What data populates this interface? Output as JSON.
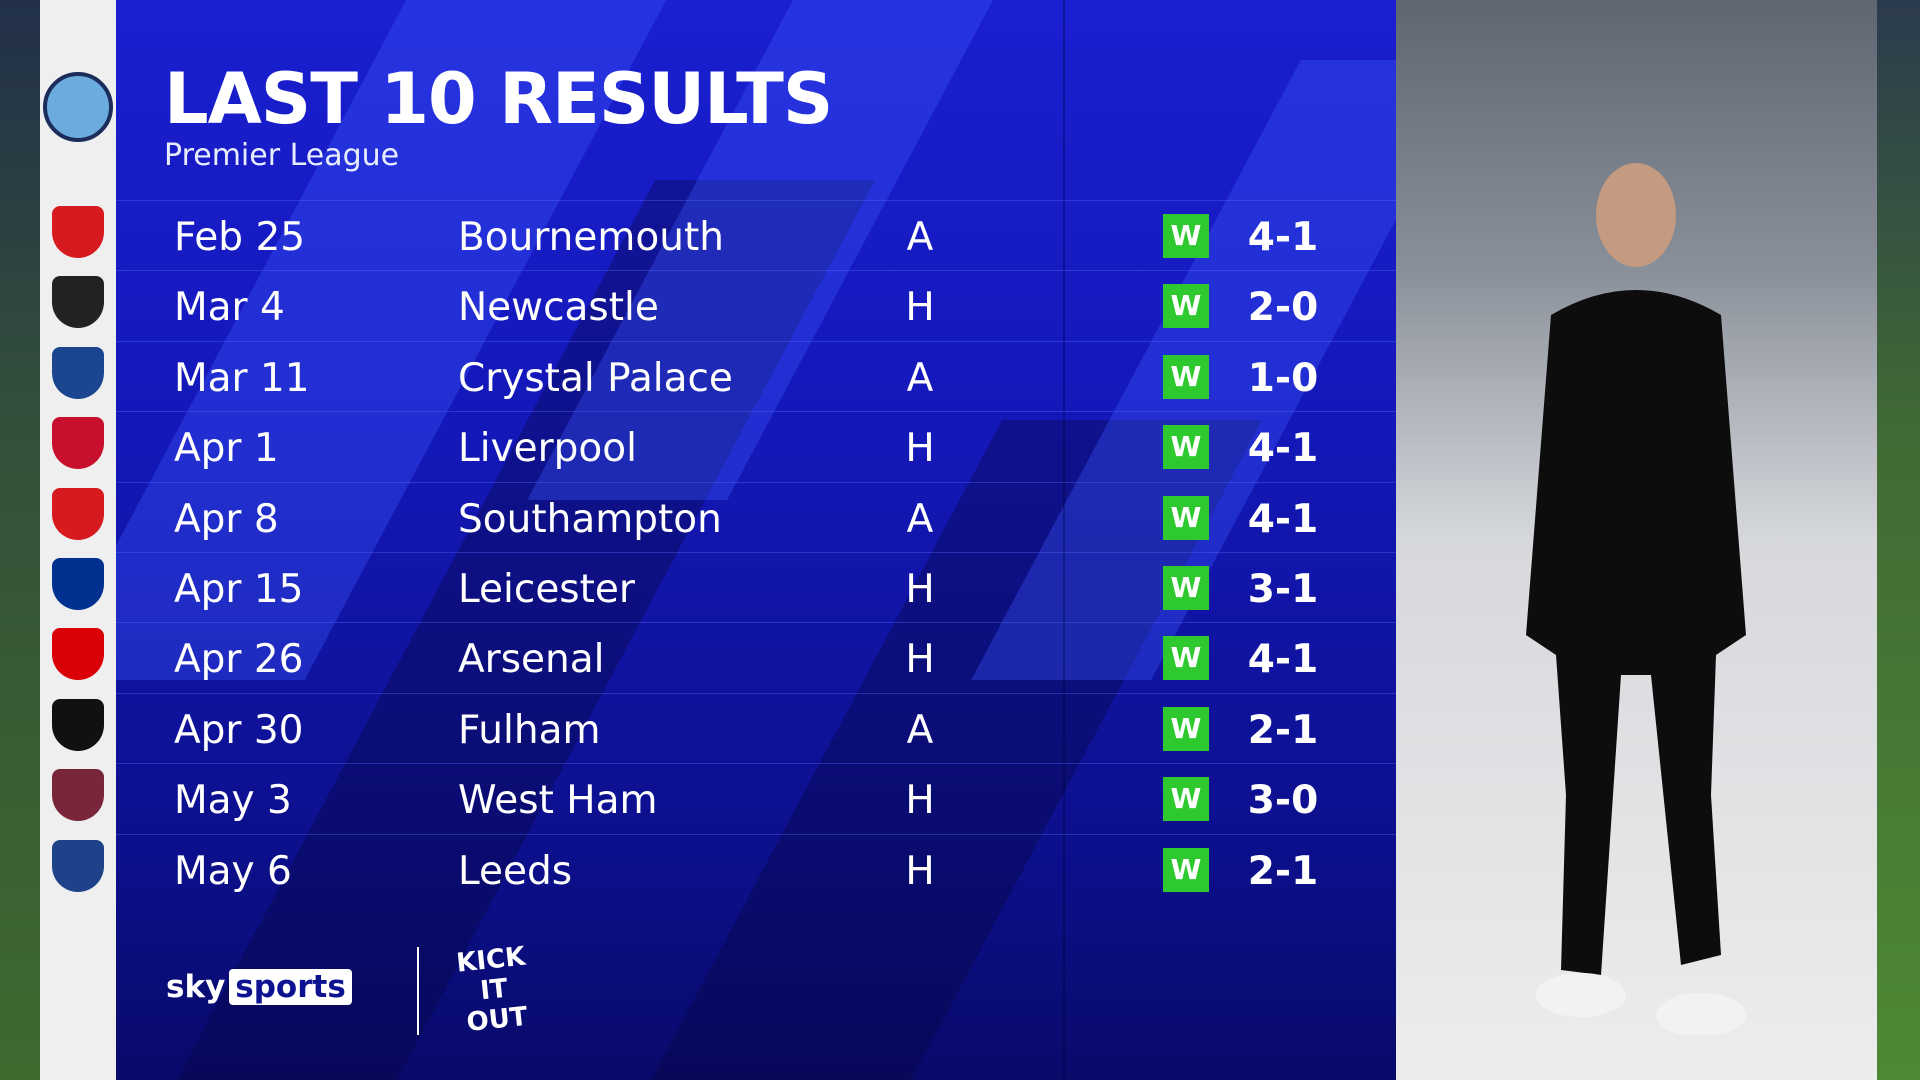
{
  "header": {
    "title": "LAST 10 RESULTS",
    "subtitle": "Premier League"
  },
  "team_crest": "manchester-city-crest",
  "results": [
    {
      "date": "Feb 25",
      "opponent": "Bournemouth",
      "venue": "A",
      "result": "W",
      "score": "4-1",
      "crest": "bournemouth",
      "color": "#d71920"
    },
    {
      "date": "Mar 4",
      "opponent": "Newcastle",
      "venue": "H",
      "result": "W",
      "score": "2-0",
      "crest": "newcastle",
      "color": "#222222"
    },
    {
      "date": "Mar 11",
      "opponent": "Crystal Palace",
      "venue": "A",
      "result": "W",
      "score": "1-0",
      "crest": "crystal-palace",
      "color": "#1b458f"
    },
    {
      "date": "Apr 1",
      "opponent": "Liverpool",
      "venue": "H",
      "result": "W",
      "score": "4-1",
      "crest": "liverpool",
      "color": "#c8102e"
    },
    {
      "date": "Apr 8",
      "opponent": "Southampton",
      "venue": "A",
      "result": "W",
      "score": "4-1",
      "crest": "southampton",
      "color": "#d71920"
    },
    {
      "date": "Apr 15",
      "opponent": "Leicester",
      "venue": "H",
      "result": "W",
      "score": "3-1",
      "crest": "leicester",
      "color": "#003090"
    },
    {
      "date": "Apr 26",
      "opponent": "Arsenal",
      "venue": "H",
      "result": "W",
      "score": "4-1",
      "crest": "arsenal",
      "color": "#db0007"
    },
    {
      "date": "Apr 30",
      "opponent": "Fulham",
      "venue": "A",
      "result": "W",
      "score": "2-1",
      "crest": "fulham",
      "color": "#111111"
    },
    {
      "date": "May 3",
      "opponent": "West Ham",
      "venue": "H",
      "result": "W",
      "score": "3-0",
      "crest": "west-ham",
      "color": "#7a263a"
    },
    {
      "date": "May 6",
      "opponent": "Leeds",
      "venue": "H",
      "result": "W",
      "score": "2-1",
      "crest": "leeds",
      "color": "#1d428a"
    }
  ],
  "colors": {
    "win": "#2ec92e",
    "panel": "#1418b8"
  },
  "branding": {
    "sky": "sky",
    "sports": "sports",
    "kick_it_out": "KICK IT OUT"
  }
}
